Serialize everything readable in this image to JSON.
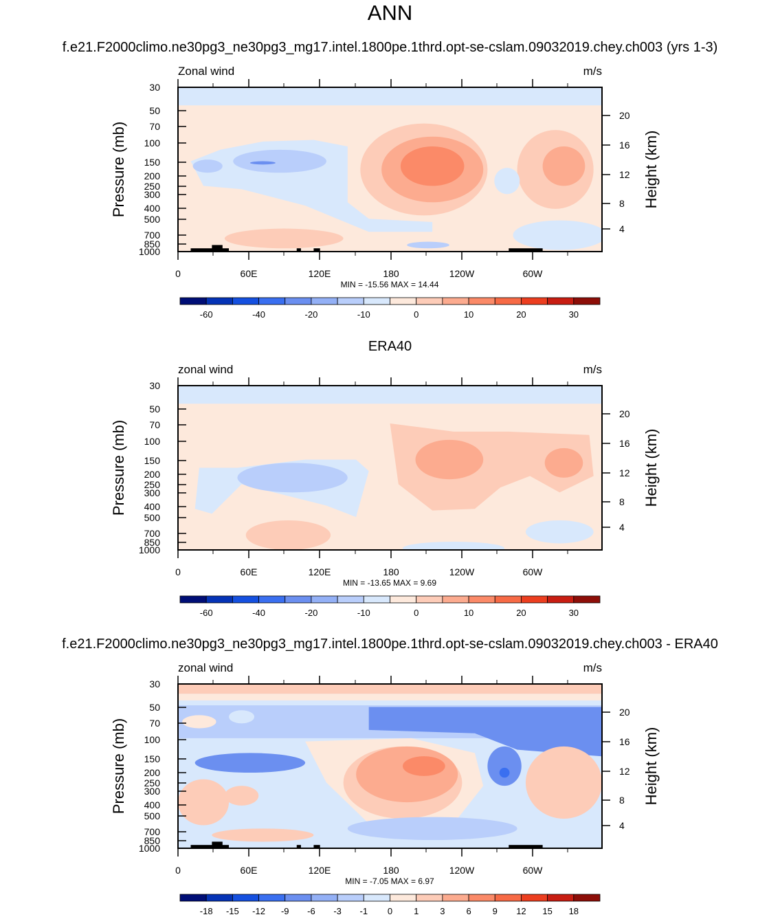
{
  "title": "ANN",
  "chart_data": [
    {
      "type": "heatmap",
      "title": "f.e21.F2000climo.ne30pg3_ne30pg3_mg17.intel.1800pe.1thrd.opt-se-cslam.09032019.chey.ch003 (yrs 1-3)",
      "left_label": "Zonal wind",
      "right_label": "m/s",
      "xlabel": "",
      "ylabel": "Pressure (mb)",
      "ylabel_right": "Height (km)",
      "x_ticks": [
        "0",
        "60E",
        "120E",
        "180",
        "120W",
        "60W"
      ],
      "y_ticks": [
        "30",
        "50",
        "70",
        "100",
        "150",
        "200",
        "250",
        "300",
        "400",
        "500",
        "700",
        "850",
        "1000"
      ],
      "height_ticks": [
        "20",
        "16",
        "12",
        "8",
        "4"
      ],
      "stats": "MIN = -15.56  MAX =  14.44",
      "levels": [
        "-60",
        "-40",
        "-20",
        "-10",
        "0",
        "10",
        "20",
        "30"
      ],
      "min": -15.56,
      "max": 14.44
    },
    {
      "type": "heatmap",
      "title": "ERA40",
      "left_label": "zonal wind",
      "right_label": "m/s",
      "xlabel": "",
      "ylabel": "Pressure (mb)",
      "ylabel_right": "Height (km)",
      "x_ticks": [
        "0",
        "60E",
        "120E",
        "180",
        "120W",
        "60W"
      ],
      "y_ticks": [
        "30",
        "50",
        "70",
        "100",
        "150",
        "200",
        "250",
        "300",
        "400",
        "500",
        "700",
        "850",
        "1000"
      ],
      "height_ticks": [
        "20",
        "16",
        "12",
        "8",
        "4"
      ],
      "stats": "MIN = -13.65  MAX =   9.69",
      "levels": [
        "-60",
        "-40",
        "-20",
        "-10",
        "0",
        "10",
        "20",
        "30"
      ],
      "min": -13.65,
      "max": 9.69
    },
    {
      "type": "heatmap",
      "title": "f.e21.F2000climo.ne30pg3_ne30pg3_mg17.intel.1800pe.1thrd.opt-se-cslam.09032019.chey.ch003 - ERA40",
      "left_label": "zonal wind",
      "right_label": "m/s",
      "xlabel": "",
      "ylabel": "Pressure (mb)",
      "ylabel_right": "Height (km)",
      "x_ticks": [
        "0",
        "60E",
        "120E",
        "180",
        "120W",
        "60W"
      ],
      "y_ticks": [
        "30",
        "50",
        "70",
        "100",
        "150",
        "200",
        "250",
        "300",
        "400",
        "500",
        "700",
        "850",
        "1000"
      ],
      "height_ticks": [
        "20",
        "16",
        "12",
        "8",
        "4"
      ],
      "stats": "MIN =  -7.05  MAX =   6.97",
      "levels": [
        "-18",
        "-15",
        "-12",
        "-9",
        "-6",
        "-3",
        "-1",
        "0",
        "1",
        "3",
        "6",
        "9",
        "12",
        "15",
        "18"
      ],
      "min": -7.05,
      "max": 6.97
    }
  ],
  "colorbar_colors": [
    "#000e76",
    "#0533b6",
    "#1550e0",
    "#3a6ff0",
    "#6b8ff0",
    "#93b0f6",
    "#b9cefb",
    "#d8e8fc",
    "#fde9dc",
    "#fdccb8",
    "#fcab8f",
    "#fb8a68",
    "#f76a45",
    "#ec3e1f",
    "#c81d12",
    "#8d0e08"
  ],
  "colorbar_colors_diff": [
    "#000e76",
    "#0533b6",
    "#1550e0",
    "#3a6ff0",
    "#6b8ff0",
    "#93b0f6",
    "#b9cefb",
    "#d8e8fc",
    "#fde9dc",
    "#fdccb8",
    "#fcab8f",
    "#fb8a68",
    "#f76a45",
    "#ec3e1f",
    "#c81d12",
    "#8d0e08"
  ]
}
